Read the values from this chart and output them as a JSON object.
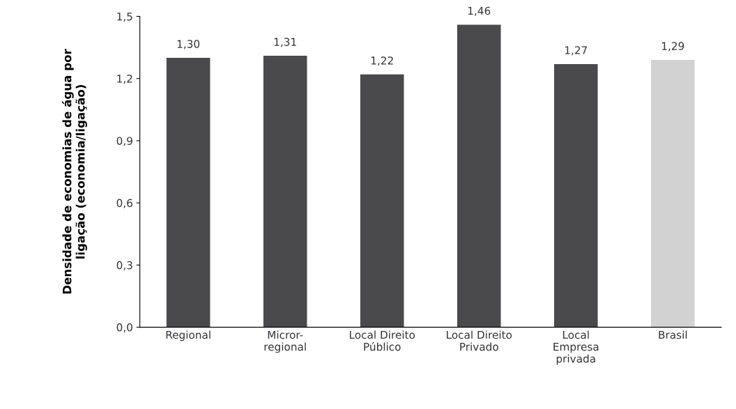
{
  "chart_data": {
    "type": "bar",
    "ylabel": "Densidade de economias de água por\nligação (economia/ligação)",
    "categories": [
      "Regional",
      "Micror-\nregional",
      "Local Direito\nPúblico",
      "Local Direito\nPrivado",
      "Local\nEmpresa\nprivada",
      "Brasil"
    ],
    "values": [
      1.3,
      1.31,
      1.22,
      1.46,
      1.27,
      1.29
    ],
    "value_labels": [
      "1,30",
      "1,31",
      "1,22",
      "1,46",
      "1,27",
      "1,29"
    ],
    "colors": [
      "#4a4a4c",
      "#4a4a4c",
      "#4a4a4c",
      "#4a4a4c",
      "#4a4a4c",
      "#d2d2d2"
    ],
    "ylim": [
      0,
      1.5
    ],
    "yticks": [
      {
        "value": 0,
        "label": "0,0"
      },
      {
        "value": 0.3,
        "label": "0,3"
      },
      {
        "value": 0.6,
        "label": "0,6"
      },
      {
        "value": 0.9,
        "label": "0,9"
      },
      {
        "value": 1.2,
        "label": "1,2"
      },
      {
        "value": 1.5,
        "label": "1,5"
      }
    ],
    "grid": false,
    "legend": false
  }
}
